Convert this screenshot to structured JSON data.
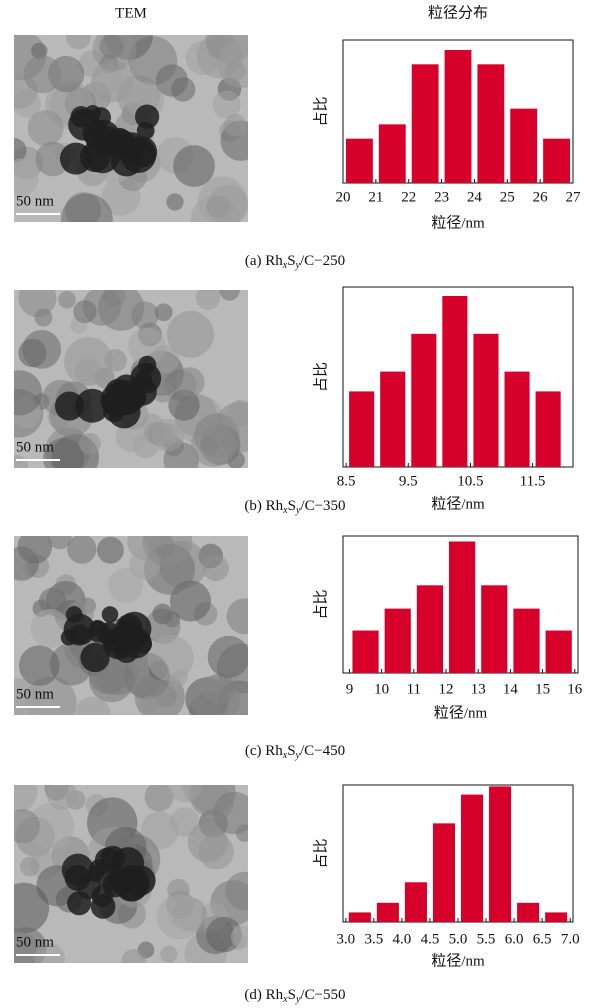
{
  "headers": {
    "left": "TEM",
    "right": "粒径分布"
  },
  "tem_images": [
    {
      "scale_bar": "50 nm"
    },
    {
      "scale_bar": "50 nm"
    },
    {
      "scale_bar": "50 nm"
    },
    {
      "scale_bar": "50 nm"
    }
  ],
  "chart_data": [
    {
      "type": "histogram",
      "ylabel": "占比",
      "xlabel": "粒径/nm",
      "color": "#d7002a",
      "caption": [
        "(a) Rh",
        "x",
        "S",
        "y",
        "/C−250"
      ],
      "bins": [
        20,
        21,
        22,
        23,
        24,
        25,
        26,
        27
      ],
      "values": [
        31,
        41,
        83,
        93,
        83,
        52,
        31
      ],
      "xlim": [
        20,
        27
      ],
      "xticks": [
        20,
        21,
        22,
        23,
        24,
        25,
        26,
        27
      ],
      "ylim": [
        0,
        100
      ]
    },
    {
      "type": "histogram",
      "ylabel": "占比",
      "xlabel": "粒径/nm",
      "color": "#d7002a",
      "caption": [
        "(b) Rh",
        "x",
        "S",
        "y",
        "/C−350"
      ],
      "bins": [
        8.5,
        9,
        9.5,
        10,
        10.5,
        11,
        11.5,
        12
      ],
      "values": [
        42,
        53,
        74,
        95,
        74,
        53,
        42
      ],
      "xlim": [
        8.45,
        12.15
      ],
      "xticks": [
        8.5,
        9.5,
        10.5,
        11.5
      ],
      "ylim": [
        0,
        100
      ]
    },
    {
      "type": "histogram",
      "ylabel": "占比",
      "xlabel": "粒径/nm",
      "color": "#d7002a",
      "caption": [
        "(c) Rh",
        "x",
        "S",
        "y",
        "/C−450"
      ],
      "bins": [
        9,
        10,
        11,
        12,
        13,
        14,
        15,
        16
      ],
      "values": [
        31,
        47,
        64,
        96,
        64,
        47,
        31
      ],
      "xlim": [
        8.8,
        16.1
      ],
      "xticks": [
        9,
        10,
        11,
        12,
        13,
        14,
        15,
        16
      ],
      "ylim": [
        0,
        100
      ]
    },
    {
      "type": "histogram",
      "ylabel": "占比",
      "xlabel": "粒径/nm",
      "color": "#d7002a",
      "caption": [
        "(d) Rh",
        "x",
        "S",
        "y",
        "/C−550"
      ],
      "bins": [
        3,
        3.5,
        4,
        4.5,
        5,
        5.5,
        6,
        6.5,
        7
      ],
      "values": [
        7,
        14,
        29,
        72,
        93,
        99,
        14,
        7
      ],
      "xlim": [
        2.95,
        7.05
      ],
      "xticks": [
        {
          "value": 3,
          "label": "3.0"
        },
        {
          "value": 3.5,
          "label": "3.5"
        },
        {
          "value": 4,
          "label": "4.0"
        },
        {
          "value": 4.5,
          "label": "4.5"
        },
        {
          "value": 5,
          "label": "5.0"
        },
        {
          "value": 5.5,
          "label": "5.5"
        },
        {
          "value": 6,
          "label": "6.0"
        },
        {
          "value": 6.5,
          "label": "6.5"
        },
        {
          "value": 7,
          "label": "7.0"
        }
      ],
      "ylim": [
        0,
        100
      ]
    }
  ]
}
